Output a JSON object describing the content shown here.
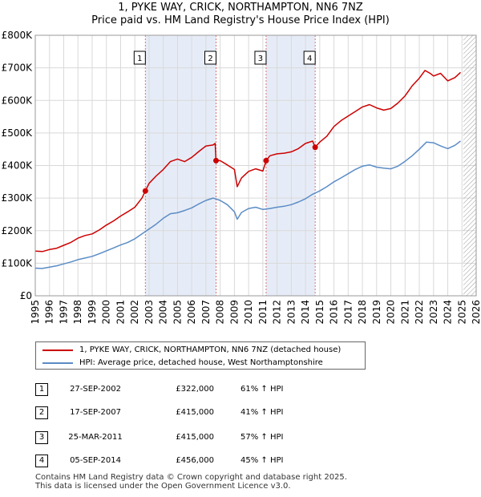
{
  "title_line1": "1, PYKE WAY, CRICK, NORTHAMPTON, NN6 7NZ",
  "title_line2": "Price paid vs. HM Land Registry's House Price Index (HPI)",
  "colors": {
    "property_line": "#cc0000",
    "hpi_line": "#5b8cc6",
    "sale_band": "#e6ecf7",
    "sale_vline": "#e07070",
    "future_hatch": "#999999",
    "grid": "#d9d9d9"
  },
  "chart_data": {
    "type": "line",
    "title": "Price paid vs. HM Land Registry's House Price Index (HPI)",
    "xlabel": "",
    "ylabel": "",
    "xlim": [
      1995,
      2026
    ],
    "ylim": [
      0,
      800000
    ],
    "x_ticks": [
      "1995",
      "1996",
      "1997",
      "1998",
      "1999",
      "2000",
      "2001",
      "2002",
      "2003",
      "2004",
      "2005",
      "2006",
      "2007",
      "2008",
      "2009",
      "2010",
      "2011",
      "2012",
      "2013",
      "2014",
      "2015",
      "2016",
      "2017",
      "2018",
      "2019",
      "2020",
      "2021",
      "2022",
      "2023",
      "2024",
      "2025",
      "2026"
    ],
    "y_ticks": [
      {
        "value": 0,
        "label": "£0"
      },
      {
        "value": 100000,
        "label": "£100K"
      },
      {
        "value": 200000,
        "label": "£200K"
      },
      {
        "value": 300000,
        "label": "£300K"
      },
      {
        "value": 400000,
        "label": "£400K"
      },
      {
        "value": 500000,
        "label": "£500K"
      },
      {
        "value": 600000,
        "label": "£600K"
      },
      {
        "value": 700000,
        "label": "£700K"
      },
      {
        "value": 800000,
        "label": "£800K"
      }
    ],
    "grid": true,
    "hatched_from_year": 2025.1,
    "sale_bands": [
      [
        2002.74,
        2007.71
      ],
      [
        2011.23,
        2014.68
      ]
    ],
    "series": [
      {
        "name": "1, PYKE WAY, CRICK, NORTHAMPTON, NN6 7NZ (detached house)",
        "x": [
          1995.0,
          1995.5,
          1996.0,
          1996.5,
          1997.0,
          1997.5,
          1998.0,
          1998.5,
          1999.0,
          1999.5,
          2000.0,
          2000.5,
          2001.0,
          2001.5,
          2002.0,
          2002.5,
          2002.74,
          2003.0,
          2003.5,
          2004.0,
          2004.5,
          2005.0,
          2005.5,
          2006.0,
          2006.5,
          2007.0,
          2007.5,
          2007.65,
          2007.71,
          2008.0,
          2008.5,
          2009.0,
          2009.2,
          2009.5,
          2010.0,
          2010.5,
          2011.0,
          2011.23,
          2011.5,
          2012.0,
          2012.5,
          2013.0,
          2013.5,
          2014.0,
          2014.5,
          2014.68,
          2015.0,
          2015.5,
          2016.0,
          2016.5,
          2017.0,
          2017.5,
          2018.0,
          2018.5,
          2019.0,
          2019.5,
          2020.0,
          2020.5,
          2021.0,
          2021.5,
          2022.0,
          2022.4,
          2022.8,
          2023.0,
          2023.5,
          2024.0,
          2024.5,
          2024.9
        ],
        "y": [
          137000,
          136000,
          142000,
          146000,
          155000,
          164000,
          177000,
          185000,
          190000,
          202000,
          217000,
          230000,
          245000,
          258000,
          272000,
          300000,
          322000,
          345000,
          368000,
          388000,
          412000,
          420000,
          412000,
          425000,
          443000,
          460000,
          463000,
          468000,
          415000,
          415000,
          402000,
          388000,
          335000,
          362000,
          382000,
          390000,
          383000,
          415000,
          430000,
          436000,
          438000,
          442000,
          452000,
          468000,
          475000,
          456000,
          472000,
          490000,
          520000,
          538000,
          552000,
          566000,
          580000,
          587000,
          577000,
          570000,
          575000,
          592000,
          614000,
          645000,
          668000,
          692000,
          682000,
          675000,
          683000,
          660000,
          670000,
          686000
        ]
      },
      {
        "name": "HPI: Average price, detached house, West Northamptonshire",
        "x": [
          1995.0,
          1995.5,
          1996.0,
          1996.5,
          1997.0,
          1997.5,
          1998.0,
          1998.5,
          1999.0,
          1999.5,
          2000.0,
          2000.5,
          2001.0,
          2001.5,
          2002.0,
          2002.5,
          2003.0,
          2003.5,
          2004.0,
          2004.5,
          2005.0,
          2005.5,
          2006.0,
          2006.5,
          2007.0,
          2007.5,
          2008.0,
          2008.5,
          2009.0,
          2009.2,
          2009.5,
          2010.0,
          2010.5,
          2011.0,
          2011.5,
          2012.0,
          2012.5,
          2013.0,
          2013.5,
          2014.0,
          2014.5,
          2015.0,
          2015.5,
          2016.0,
          2016.5,
          2017.0,
          2017.5,
          2018.0,
          2018.5,
          2019.0,
          2019.5,
          2020.0,
          2020.5,
          2021.0,
          2021.5,
          2022.0,
          2022.5,
          2023.0,
          2023.5,
          2024.0,
          2024.5,
          2024.9
        ],
        "y": [
          85000,
          84000,
          88000,
          92000,
          98000,
          104000,
          111000,
          116000,
          121000,
          129000,
          138000,
          147000,
          156000,
          164000,
          175000,
          190000,
          205000,
          220000,
          238000,
          252000,
          255000,
          262000,
          270000,
          282000,
          293000,
          300000,
          293000,
          280000,
          258000,
          235000,
          256000,
          268000,
          272000,
          265000,
          268000,
          272000,
          275000,
          280000,
          288000,
          298000,
          312000,
          322000,
          335000,
          350000,
          362000,
          375000,
          388000,
          398000,
          402000,
          395000,
          392000,
          390000,
          398000,
          413000,
          430000,
          450000,
          472000,
          470000,
          460000,
          452000,
          462000,
          475000
        ]
      }
    ],
    "markers": [
      {
        "label": "1",
        "year": 2002.74,
        "value": 322000
      },
      {
        "label": "2",
        "year": 2007.71,
        "value": 415000
      },
      {
        "label": "3",
        "year": 2011.23,
        "value": 415000
      },
      {
        "label": "4",
        "year": 2014.68,
        "value": 456000
      }
    ]
  },
  "legend": {
    "property": "1, PYKE WAY, CRICK, NORTHAMPTON, NN6 7NZ (detached house)",
    "hpi": "HPI: Average price, detached house, West Northamptonshire"
  },
  "sales": [
    {
      "num": "1",
      "date": "27-SEP-2002",
      "price": "£322,000",
      "hpi": "61% ↑ HPI"
    },
    {
      "num": "2",
      "date": "17-SEP-2007",
      "price": "£415,000",
      "hpi": "41% ↑ HPI"
    },
    {
      "num": "3",
      "date": "25-MAR-2011",
      "price": "£415,000",
      "hpi": "57% ↑ HPI"
    },
    {
      "num": "4",
      "date": "05-SEP-2014",
      "price": "£456,000",
      "hpi": "45% ↑ HPI"
    }
  ],
  "footer_line1": "Contains HM Land Registry data © Crown copyright and database right 2025.",
  "footer_line2": "This data is licensed under the Open Government Licence v3.0."
}
